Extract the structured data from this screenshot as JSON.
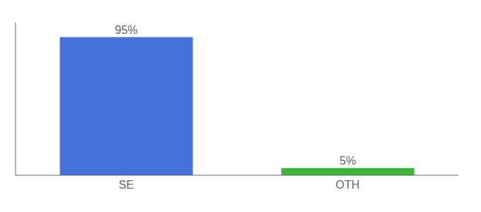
{
  "chart_data": {
    "type": "bar",
    "categories": [
      "SE",
      "OTH"
    ],
    "values": [
      95,
      5
    ],
    "value_labels": [
      "95%",
      "5%"
    ],
    "colors": [
      "#4472db",
      "#3db53d"
    ],
    "ylim": [
      0,
      105
    ],
    "data_labels": true,
    "tick_labels": "x",
    "grid": false
  }
}
